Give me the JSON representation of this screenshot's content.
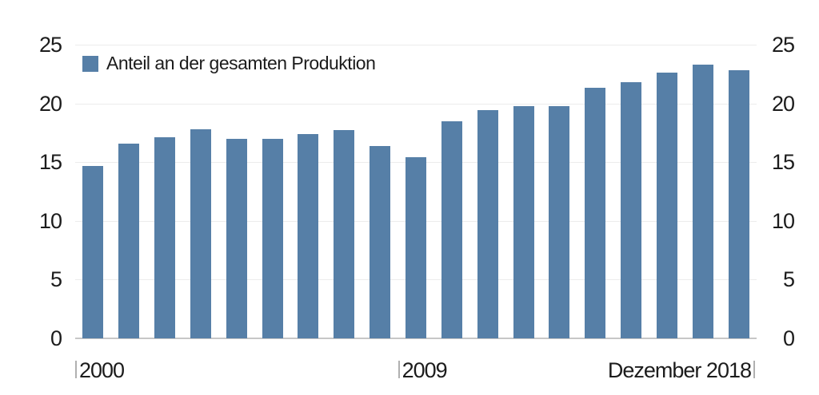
{
  "legend": {
    "label": "Anteil an der gesamten Produktion"
  },
  "colors": {
    "bar": "#567fa7",
    "gridline": "#ececec",
    "baseline": "#c7c7c7",
    "text": "#1c1c1c",
    "tick": "#b0b0b0",
    "background": "#ffffff"
  },
  "chart_data": {
    "type": "bar",
    "title": "",
    "legend_entries": [
      "Anteil an der gesamten Produktion"
    ],
    "categories": [
      "2000",
      "2001",
      "2002",
      "2003",
      "2004",
      "2005",
      "2006",
      "2007",
      "2008",
      "2009",
      "2010",
      "2011",
      "2012",
      "2013",
      "2014",
      "2015",
      "2016",
      "2017",
      "2018"
    ],
    "values": [
      14.7,
      16.6,
      17.1,
      17.8,
      17.0,
      17.0,
      17.4,
      17.7,
      16.4,
      15.4,
      18.5,
      19.4,
      19.8,
      19.8,
      21.3,
      21.8,
      22.6,
      23.3,
      22.8
    ],
    "xlabel": "",
    "ylabel": "",
    "ylim": [
      0,
      25
    ],
    "yticks": [
      0,
      5,
      10,
      15,
      20,
      25
    ],
    "y_axis_sides": [
      "left",
      "right"
    ],
    "grid": "horizontal",
    "legend_position": "top-left-inside",
    "x_tick_labels": [
      {
        "index": 0,
        "text": "2000",
        "align": "left"
      },
      {
        "index": 9,
        "text": "2009",
        "align": "left"
      },
      {
        "index": 18,
        "text": "Dezember 2018",
        "align": "right"
      }
    ]
  }
}
